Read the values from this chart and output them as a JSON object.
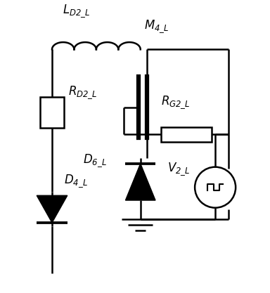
{
  "bg_color": "#ffffff",
  "line_color": "#000000",
  "lw": 1.8,
  "fig_w": 3.84,
  "fig_h": 4.17,
  "dpi": 100
}
